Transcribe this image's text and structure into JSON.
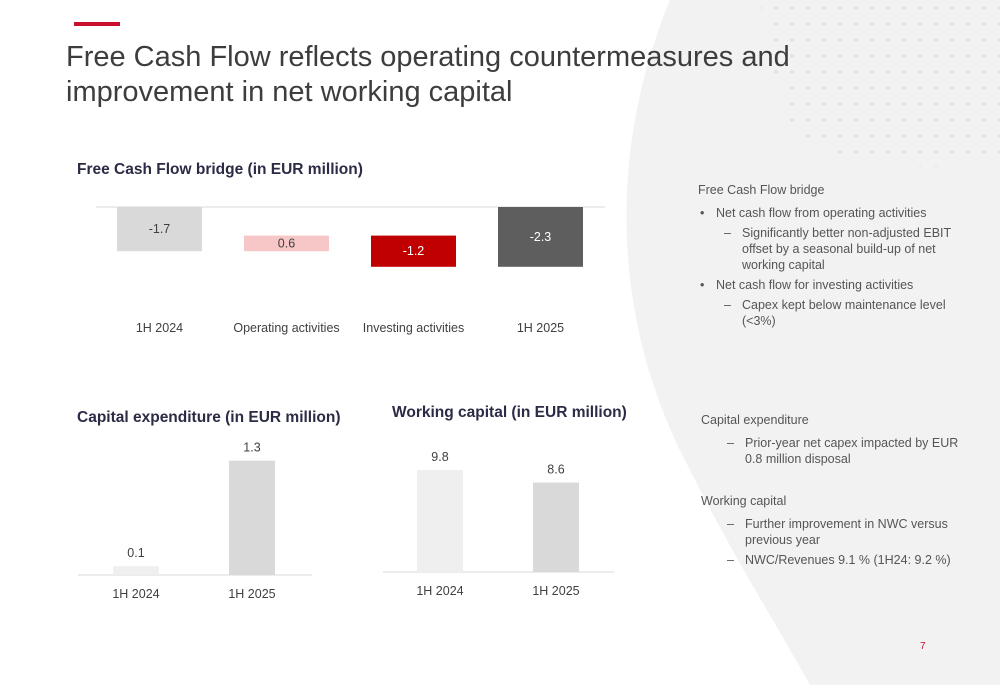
{
  "page": {
    "title": "Free Cash Flow reflects operating countermeasures and improvement in net working capital",
    "page_number": "7",
    "accent_color": "#c8102e"
  },
  "fcf_bridge": {
    "title": "Free Cash Flow bridge (in EUR million)"
  },
  "capex": {
    "title": "Capital expenditure (in EUR million)"
  },
  "working_capital": {
    "title": "Working capital (in EUR million)"
  },
  "notes": {
    "fcf": {
      "heading": "Free Cash Flow bridge",
      "bullet_1": "Net cash flow from operating activities",
      "sub_1": "Significantly better non-adjusted EBIT offset by a seasonal build-up of net working capital",
      "bullet_2": "Net cash flow for investing activities",
      "sub_2": "Capex kept below maintenance level (<3%)"
    },
    "capex": {
      "heading": "Capital expenditure",
      "sub_1": "Prior-year net capex impacted by EUR 0.8 million disposal"
    },
    "wc": {
      "heading": "Working capital",
      "sub_1": "Further improvement in NWC versus previous year",
      "sub_2": "NWC/Revenues 9.1 % (1H24: 9.2 %)"
    }
  },
  "chart_data": [
    {
      "type": "bar",
      "subtype": "waterfall",
      "title": "Free Cash Flow bridge (in EUR million)",
      "categories": [
        "1H 2024",
        "Operating activities",
        "Investing activities",
        "1H 2025"
      ],
      "values": [
        -1.7,
        0.6,
        -1.2,
        -2.3
      ],
      "data_labels": [
        "-1.7",
        "0.6",
        "-1.2",
        "-2.3"
      ],
      "colors": [
        "#d9d9d9",
        "#f7c6c6",
        "#c00000",
        "#5e5e5e"
      ],
      "label_colors": [
        "#404040",
        "#404040",
        "#ffffff",
        "#ffffff"
      ],
      "grid": false
    },
    {
      "type": "bar",
      "title": "Capital expenditure (in EUR million)",
      "categories": [
        "1H 2024",
        "1H 2025"
      ],
      "values": [
        0.1,
        1.3
      ],
      "data_labels": [
        "0.1",
        "1.3"
      ],
      "colors": [
        "#efefef",
        "#d9d9d9"
      ],
      "grid": false
    },
    {
      "type": "bar",
      "title": "Working capital (in EUR million)",
      "categories": [
        "1H 2024",
        "1H 2025"
      ],
      "values": [
        9.8,
        8.6
      ],
      "data_labels": [
        "9.8",
        "8.6"
      ],
      "colors": [
        "#efefef",
        "#d9d9d9"
      ],
      "grid": false
    }
  ]
}
